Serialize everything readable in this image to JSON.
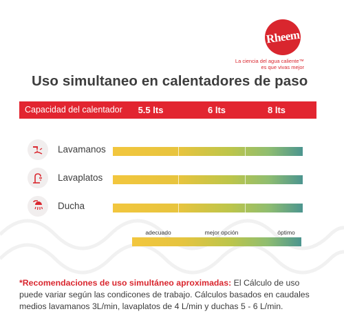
{
  "brand": {
    "name": "Rheem",
    "tagline_line1": "La ciencia del agua caliente™",
    "tagline_line2": "es que vivas mejor",
    "color": "#d9262e"
  },
  "title": "Uso simultaneo en calentadores de paso",
  "capacity": {
    "label": "Capacidad del calentador",
    "sizes": [
      "5.5 lts",
      "6 lts",
      "8 lts"
    ],
    "color": "#e22530"
  },
  "uses": [
    {
      "label": "Lavamanos",
      "icon": "faucet-handwash-icon"
    },
    {
      "label": "Lavaplatos",
      "icon": "kitchen-faucet-icon"
    },
    {
      "label": "Ducha",
      "icon": "shower-icon"
    }
  ],
  "scale": {
    "labels": [
      "adecuado",
      "mejor opción",
      "óptimo"
    ],
    "colors": [
      "#f2c63e",
      "#bcc54b",
      "#4c958f"
    ]
  },
  "footnote": {
    "strong": "*Recomendaciones de uso simultáneo aproximadas:",
    "text": " El Cálculo de uso puede variar según las condicones de trabajo. Cálculos basados en caudales medios lavamanos 3L/min, lavaplatos de 4 L/min y duchas 5 - 6 L/min."
  }
}
